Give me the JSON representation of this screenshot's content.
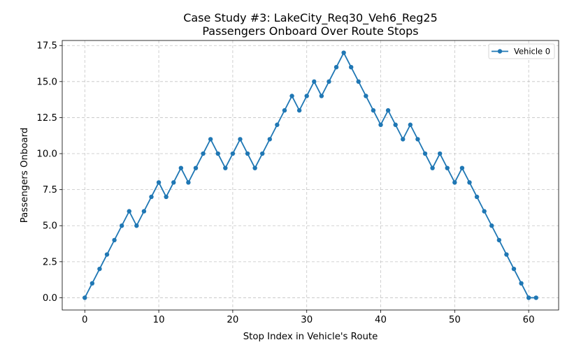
{
  "chart_data": {
    "type": "line",
    "title": "Case Study #3: LakeCity_Req30_Veh6_Reg25",
    "subtitle": "Passengers Onboard Over Route Stops",
    "xlabel": "Stop Index in Vehicle's Route",
    "ylabel": "Passengers Onboard",
    "xlim": [
      -3.05,
      64.05
    ],
    "ylim": [
      -0.85,
      17.85
    ],
    "xticks": [
      0,
      10,
      20,
      30,
      40,
      50,
      60
    ],
    "yticks": [
      0.0,
      2.5,
      5.0,
      7.5,
      10.0,
      12.5,
      15.0,
      17.5
    ],
    "xtick_labels": [
      "0",
      "10",
      "20",
      "30",
      "40",
      "50",
      "60"
    ],
    "ytick_labels": [
      "0.0",
      "2.5",
      "5.0",
      "7.5",
      "10.0",
      "12.5",
      "15.0",
      "17.5"
    ],
    "grid": true,
    "legend_position": "top-right",
    "series": [
      {
        "name": "Vehicle 0",
        "color": "#1f77b4",
        "marker": "circle",
        "x": [
          0,
          1,
          2,
          3,
          4,
          5,
          6,
          7,
          8,
          9,
          10,
          11,
          12,
          13,
          14,
          15,
          16,
          17,
          18,
          19,
          20,
          21,
          22,
          23,
          24,
          25,
          26,
          27,
          28,
          29,
          30,
          31,
          32,
          33,
          34,
          35,
          36,
          37,
          38,
          39,
          40,
          41,
          42,
          43,
          44,
          45,
          46,
          47,
          48,
          49,
          50,
          51,
          52,
          53,
          54,
          55,
          56,
          57,
          58,
          59,
          60,
          61
        ],
        "y": [
          0,
          1,
          2,
          3,
          4,
          5,
          6,
          5,
          6,
          7,
          8,
          7,
          8,
          9,
          8,
          9,
          10,
          11,
          10,
          9,
          10,
          11,
          10,
          9,
          10,
          11,
          12,
          13,
          14,
          13,
          14,
          15,
          14,
          15,
          16,
          17,
          16,
          15,
          14,
          13,
          12,
          13,
          12,
          11,
          12,
          11,
          10,
          9,
          10,
          9,
          8,
          9,
          8,
          7,
          6,
          5,
          4,
          3,
          2,
          1,
          0,
          0
        ]
      }
    ]
  }
}
